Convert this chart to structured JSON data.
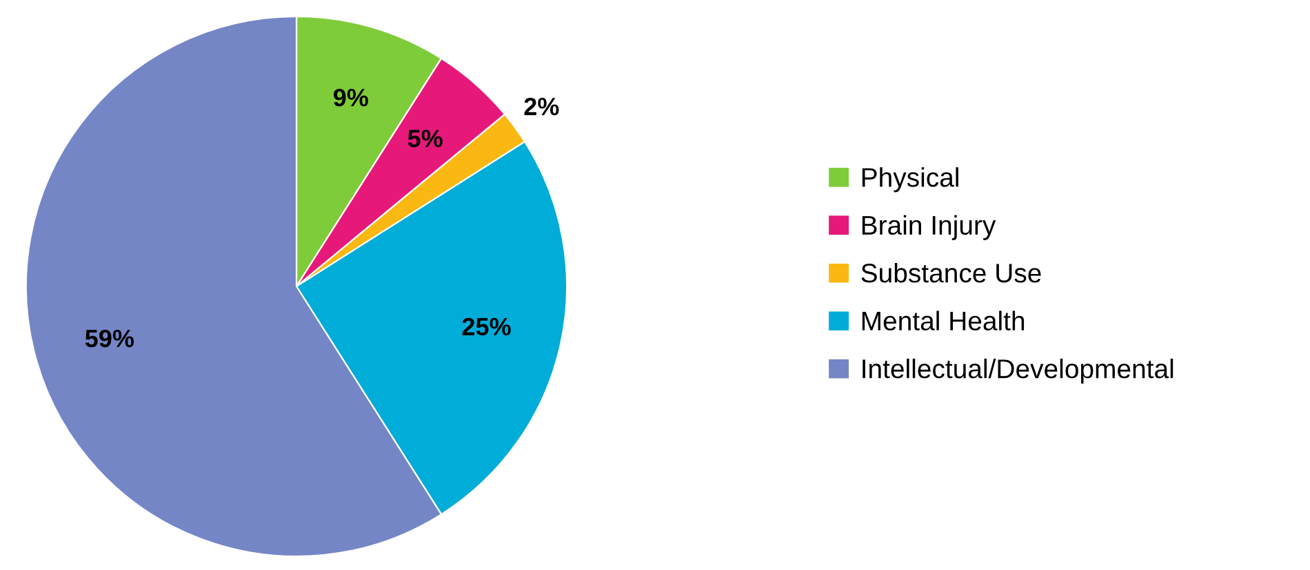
{
  "chart_data": {
    "type": "pie",
    "categories": [
      "Physical",
      "Brain Injury",
      "Substance Use",
      "Mental Health",
      "Intellectual/Developmental"
    ],
    "values": [
      9,
      5,
      2,
      25,
      59
    ],
    "colors": [
      "#7fcc3a",
      "#e6197a",
      "#fbb812",
      "#00acd8",
      "#7586c6"
    ],
    "value_labels": [
      "9%",
      "5%",
      "2%",
      "25%",
      "59%"
    ],
    "legend": "right"
  }
}
